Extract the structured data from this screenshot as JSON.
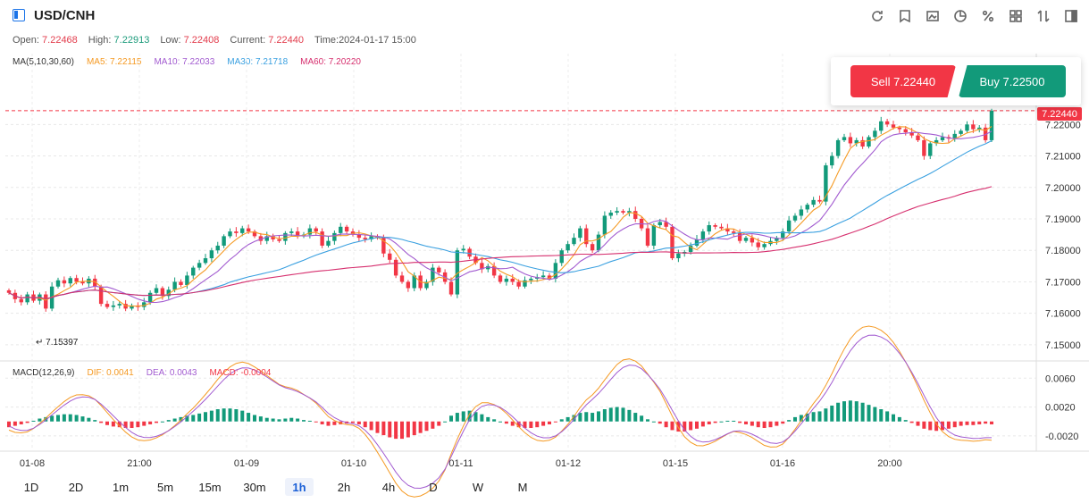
{
  "header": {
    "title": "USD/CNH",
    "tools": [
      "refresh-icon",
      "draw-icon",
      "chart-type-icon",
      "indicator-icon",
      "percent-icon",
      "grid-icon",
      "sort-icon",
      "layout-icon"
    ]
  },
  "ohlc": {
    "open_label": "Open:",
    "open": "7.22468",
    "high_label": "High:",
    "high": "7.22913",
    "low_label": "Low:",
    "low": "7.22408",
    "current_label": "Current:",
    "current": "7.22440",
    "time_label": "Time:",
    "time": "2024-01-17 15:00"
  },
  "ma_legend": {
    "name": "MA(5,10,30,60)",
    "ma5": "MA5: 7.22115",
    "ma10": "MA10: 7.22033",
    "ma30": "MA30: 7.21718",
    "ma60": "MA60: 7.20220"
  },
  "trade": {
    "sell": "Sell 7.22440",
    "buy": "Buy 7.22500"
  },
  "price_tag": "7.22440",
  "low_mark": "7.15397",
  "macd_legend": {
    "name": "MACD(12,26,9)",
    "dif": "DIF: 0.0041",
    "dea": "DEA: 0.0043",
    "macd": "MACD: -0.0004"
  },
  "timeframes": [
    "1D",
    "2D",
    "1m",
    "5m",
    "15m",
    "30m",
    "1h",
    "2h",
    "4h",
    "D",
    "W",
    "M"
  ],
  "active_timeframe": "1h",
  "colors": {
    "up": "#129a7a",
    "down": "#f23645",
    "ma5": "#f59a23",
    "ma10": "#a25bd0",
    "ma30": "#3aa0e0",
    "ma60": "#d62f6e",
    "dif": "#f59a23",
    "dea": "#a25bd0"
  },
  "chart_data": {
    "type": "candlestick",
    "x_tick_labels": [
      "01-08",
      "21:00",
      "01-09",
      "01-10",
      "01-11",
      "01-12",
      "01-15",
      "01-16",
      "20:00"
    ],
    "y_tick_labels": [
      "7.22000",
      "7.21000",
      "7.20000",
      "7.19000",
      "7.18000",
      "7.17000",
      "7.16000",
      "7.15000"
    ],
    "y_ticks": [
      7.22,
      7.21,
      7.2,
      7.19,
      7.18,
      7.17,
      7.16,
      7.15
    ],
    "ylim": [
      7.146,
      7.234
    ],
    "macd_y_tick_labels": [
      "0.0060",
      "0.0020",
      "-0.0020"
    ],
    "macd_y_ticks": [
      0.006,
      0.002,
      -0.002
    ],
    "macd_ylim": [
      -0.0035,
      0.0074
    ],
    "closes": [
      7.1665,
      7.1645,
      7.1635,
      7.166,
      7.164,
      7.166,
      7.1615,
      7.1685,
      7.1705,
      7.1695,
      7.1712,
      7.17,
      7.1695,
      7.171,
      7.1685,
      7.163,
      7.162,
      7.1625,
      7.163,
      7.1615,
      7.1625,
      7.162,
      7.1635,
      7.1665,
      7.168,
      7.1655,
      7.1675,
      7.17,
      7.169,
      7.172,
      7.1745,
      7.176,
      7.1775,
      7.18,
      7.1815,
      7.1845,
      7.186,
      7.1855,
      7.187,
      7.186,
      7.1845,
      7.183,
      7.1845,
      7.1835,
      7.183,
      7.1855,
      7.186,
      7.1845,
      7.185,
      7.187,
      7.186,
      7.1815,
      7.183,
      7.1855,
      7.1875,
      7.186,
      7.185,
      7.184,
      7.1835,
      7.1845,
      7.184,
      7.179,
      7.177,
      7.172,
      7.17,
      7.168,
      7.172,
      7.168,
      7.17,
      7.1745,
      7.173,
      7.17,
      7.166,
      7.18,
      7.1805,
      7.178,
      7.176,
      7.174,
      7.175,
      7.172,
      7.17,
      7.171,
      7.17,
      7.1685,
      7.1705,
      7.171,
      7.1715,
      7.172,
      7.171,
      7.176,
      7.18,
      7.182,
      7.184,
      7.187,
      7.182,
      7.18,
      7.185,
      7.191,
      7.192,
      7.1925,
      7.192,
      7.1925,
      7.19,
      7.187,
      7.1815,
      7.188,
      7.189,
      7.1875,
      7.1775,
      7.179,
      7.1795,
      7.1815,
      7.1835,
      7.186,
      7.188,
      7.1875,
      7.187,
      7.186,
      7.1855,
      7.183,
      7.184,
      7.1825,
      7.181,
      7.182,
      7.183,
      7.184,
      7.186,
      7.1895,
      7.191,
      7.193,
      7.1945,
      7.196,
      7.1955,
      7.207,
      7.21,
      7.215,
      7.216,
      7.214,
      7.215,
      7.213,
      7.216,
      7.218,
      7.221,
      7.22,
      7.219,
      7.2185,
      7.2175,
      7.2165,
      7.215,
      7.21,
      7.214,
      7.215,
      7.216,
      7.2155,
      7.217,
      7.218,
      7.22,
      7.2185,
      7.219,
      7.215,
      7.2244
    ],
    "macd_hist": [
      -0.0008,
      -0.0006,
      -0.0004,
      -0.0002,
      0.0001,
      0.0004,
      0.0006,
      0.0008,
      0.0009,
      0.001,
      0.001,
      0.0009,
      0.0007,
      0.0005,
      0.0002,
      -0.0002,
      -0.0005,
      -0.0007,
      -0.0008,
      -0.0009,
      -0.0009,
      -0.0008,
      -0.0006,
      -0.0004,
      -0.0002,
      0.0,
      0.0002,
      0.0004,
      0.0006,
      0.0008,
      0.0009,
      0.0011,
      0.0013,
      0.0015,
      0.0017,
      0.0018,
      0.0018,
      0.0017,
      0.0015,
      0.0012,
      0.0009,
      0.0007,
      0.0005,
      0.0004,
      0.0003,
      0.0004,
      0.0005,
      0.0004,
      0.0002,
      0.0001,
      -0.0001,
      -0.0004,
      -0.0006,
      -0.0005,
      -0.0004,
      -0.0003,
      -0.0002,
      -0.0004,
      -0.0008,
      -0.0012,
      -0.0016,
      -0.0019,
      -0.0022,
      -0.0024,
      -0.0024,
      -0.0022,
      -0.0019,
      -0.0016,
      -0.0013,
      -0.001,
      -0.0006,
      0.0,
      0.0008,
      0.0012,
      0.0014,
      0.0015,
      0.0013,
      0.001,
      0.0006,
      0.0003,
      0.0,
      -0.0003,
      -0.0006,
      -0.0008,
      -0.0009,
      -0.0009,
      -0.0008,
      -0.0006,
      -0.0004,
      -0.0001,
      0.0003,
      0.0006,
      0.0009,
      0.0012,
      0.0013,
      0.0012,
      0.0014,
      0.0017,
      0.0019,
      0.002,
      0.0019,
      0.0016,
      0.0012,
      0.0008,
      0.0003,
      0.0,
      -0.0003,
      -0.0008,
      -0.0012,
      -0.0014,
      -0.0014,
      -0.0012,
      -0.001,
      -0.0007,
      -0.0004,
      -0.0002,
      0.0,
      0.0001,
      0.0001,
      -0.0002,
      -0.0004,
      -0.0006,
      -0.0008,
      -0.0009,
      -0.0008,
      -0.0006,
      -0.0003,
      0.0002,
      0.0006,
      0.0009,
      0.0011,
      0.0013,
      0.0014,
      0.0018,
      0.0022,
      0.0026,
      0.0028,
      0.0029,
      0.0028,
      0.0026,
      0.0023,
      0.002,
      0.0017,
      0.0014,
      0.001,
      0.0006,
      0.0002,
      -0.0002,
      -0.0006,
      -0.001,
      -0.0012,
      -0.0013,
      -0.0012,
      -0.001,
      -0.0008,
      -0.0006,
      -0.0005,
      -0.0005,
      -0.0004,
      -0.0003,
      -0.0004
    ]
  }
}
